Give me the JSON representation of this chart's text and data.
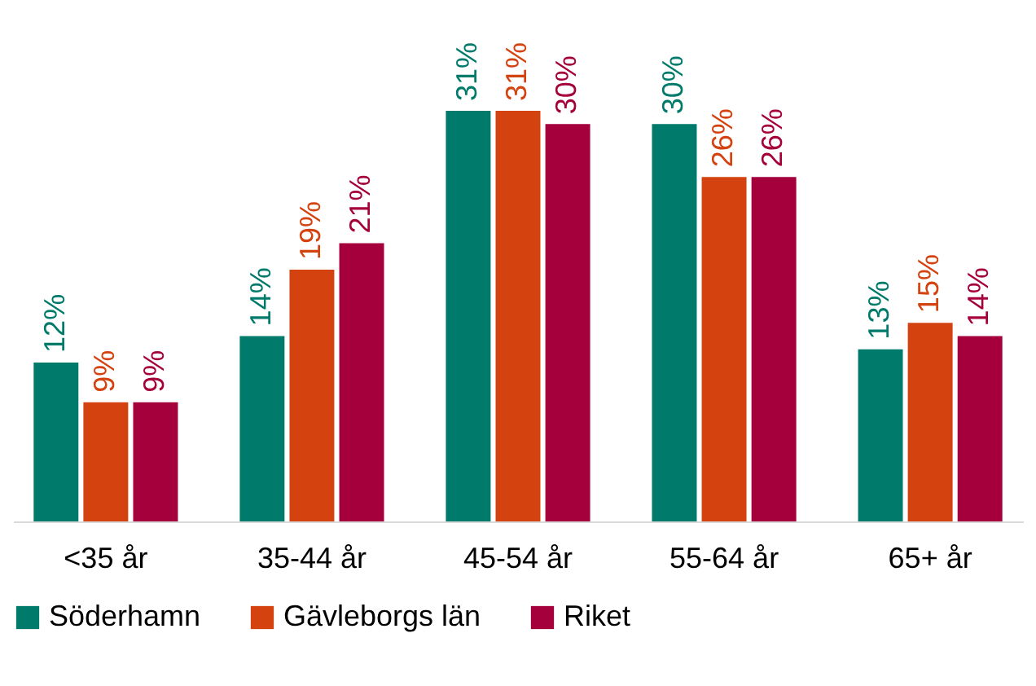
{
  "chart_data": {
    "type": "bar",
    "categories": [
      "<35 år",
      "35-44 år",
      "45-54 år",
      "55-64 år",
      "65+ år"
    ],
    "series": [
      {
        "name": "Söderhamn",
        "color": "#007a6b",
        "values": [
          12,
          14,
          31,
          30,
          13
        ],
        "value_labels": [
          "12%",
          "14%",
          "31%",
          "30%",
          "13%"
        ]
      },
      {
        "name": "Gävleborgs län",
        "color": "#d4420f",
        "values": [
          9,
          19,
          31,
          26,
          15
        ],
        "value_labels": [
          "9%",
          "19%",
          "31%",
          "26%",
          "15%"
        ]
      },
      {
        "name": "Riket",
        "color": "#a6003c",
        "values": [
          9,
          21,
          30,
          26,
          14
        ],
        "value_labels": [
          "9%",
          "21%",
          "30%",
          "26%",
          "14%"
        ]
      }
    ],
    "legend": "bottom"
  }
}
